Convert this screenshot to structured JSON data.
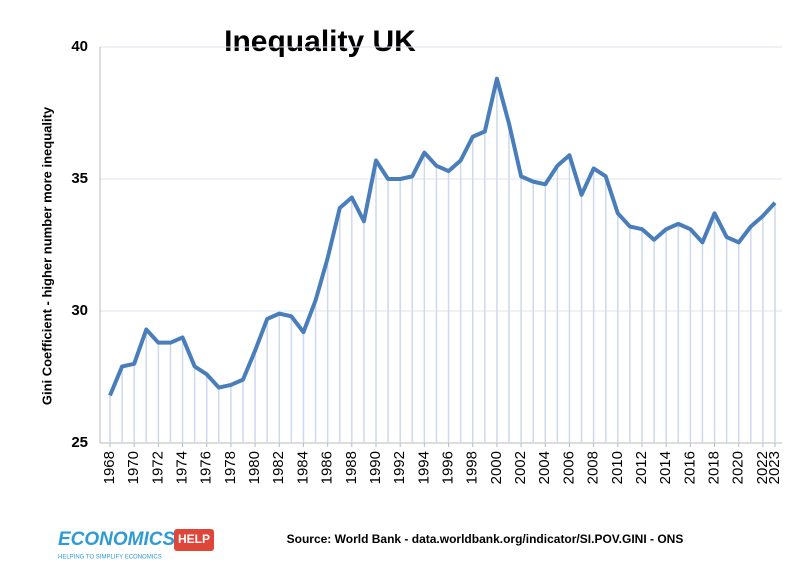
{
  "chart_data": {
    "type": "line",
    "title": "Inequality UK",
    "y_label": "Gini Coefficient - higher number more inequality",
    "source": "Source: World Bank - data.worldbank.org/indicator/SI.POV.GINI - ONS",
    "x": [
      1968,
      1969,
      1970,
      1971,
      1972,
      1973,
      1974,
      1975,
      1976,
      1977,
      1978,
      1979,
      1980,
      1981,
      1982,
      1983,
      1984,
      1985,
      1986,
      1987,
      1988,
      1989,
      1990,
      1991,
      1992,
      1993,
      1994,
      1995,
      1996,
      1997,
      1998,
      1999,
      2000,
      2001,
      2002,
      2003,
      2004,
      2005,
      2006,
      2007,
      2008,
      2009,
      2010,
      2011,
      2012,
      2013,
      2014,
      2015,
      2016,
      2017,
      2018,
      2019,
      2020,
      2021,
      2022,
      2023
    ],
    "series": [
      {
        "color": "#4a7ebb",
        "values": [
          26.8,
          27.9,
          28.0,
          29.3,
          28.8,
          28.8,
          29.0,
          27.9,
          27.6,
          27.1,
          27.2,
          27.4,
          28.5,
          29.7,
          29.9,
          29.8,
          29.2,
          30.4,
          32.0,
          33.9,
          34.3,
          33.4,
          35.7,
          35.0,
          35.0,
          35.1,
          36.0,
          35.5,
          35.3,
          35.7,
          36.6,
          36.8,
          38.8,
          37.1,
          35.1,
          34.9,
          34.8,
          35.5,
          35.9,
          34.4,
          35.4,
          35.1,
          33.7,
          33.2,
          33.1,
          32.7,
          33.1,
          33.3,
          33.1,
          32.6,
          33.7,
          32.8,
          32.6,
          33.2,
          33.6,
          34.1
        ]
      }
    ],
    "xlim": [
      1968,
      2023
    ],
    "xticks": [
      1968,
      1970,
      1972,
      1974,
      1976,
      1978,
      1980,
      1982,
      1984,
      1986,
      1988,
      1990,
      1992,
      1994,
      1996,
      1998,
      2000,
      2002,
      2004,
      2006,
      2008,
      2010,
      2012,
      2014,
      2016,
      2018,
      2020,
      2022,
      2023
    ],
    "ylim": [
      25,
      40
    ],
    "yticks": [
      25,
      30,
      35,
      40
    ],
    "grid": true,
    "fill_color": "#cdd9ec"
  },
  "logo": {
    "text": "ECONOMICS",
    "badge": "HELP",
    "tagline": "HELPING TO SIMPLIFY ECONOMICS"
  }
}
